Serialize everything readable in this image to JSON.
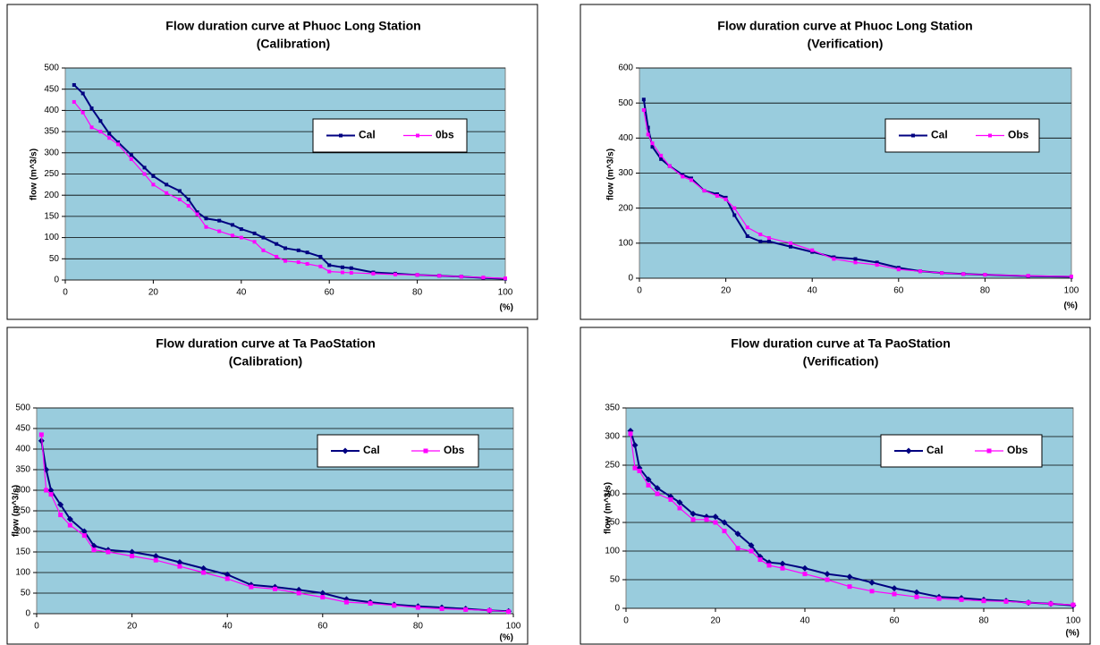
{
  "chart_data": [
    {
      "type": "line",
      "title": "Flow duration curve at Phuoc Long Station",
      "subtitle": "(Calibration)",
      "y_label": "flow (m^3/s)",
      "x_label": "(%)",
      "plot_color": "#99ccdd",
      "grid": true,
      "xlim": [
        0,
        100
      ],
      "xticks": [
        0,
        20,
        40,
        60,
        80,
        100
      ],
      "ylim": [
        0,
        500
      ],
      "yticks": [
        0,
        50,
        100,
        150,
        200,
        250,
        300,
        350,
        400,
        450,
        500
      ],
      "x": [
        2,
        4,
        6,
        8,
        10,
        12,
        15,
        18,
        20,
        23,
        26,
        28,
        30,
        32,
        35,
        38,
        40,
        43,
        45,
        48,
        50,
        53,
        55,
        58,
        60,
        63,
        65,
        70,
        75,
        80,
        85,
        90,
        95,
        100
      ],
      "series": [
        {
          "name": "Cal",
          "color": "#000080",
          "values": [
            460,
            440,
            405,
            375,
            345,
            325,
            295,
            265,
            245,
            225,
            210,
            190,
            160,
            145,
            140,
            130,
            120,
            110,
            100,
            85,
            75,
            70,
            65,
            55,
            35,
            30,
            28,
            18,
            15,
            12,
            10,
            8,
            5,
            3
          ]
        },
        {
          "name": "0bs",
          "color": "#ff00ff",
          "values": [
            420,
            395,
            360,
            350,
            335,
            320,
            285,
            250,
            225,
            205,
            190,
            175,
            155,
            125,
            115,
            105,
            100,
            90,
            70,
            55,
            45,
            42,
            38,
            32,
            20,
            18,
            17,
            15,
            13,
            12,
            10,
            8,
            6,
            4
          ]
        }
      ]
    },
    {
      "type": "line",
      "title": "Flow duration curve at Phuoc Long Station",
      "subtitle": "(Verification)",
      "y_label": "flow (m^3/s)",
      "x_label": "(%)",
      "plot_color": "#99ccdd",
      "grid": true,
      "xlim": [
        0,
        100
      ],
      "xticks": [
        0,
        20,
        40,
        60,
        80,
        100
      ],
      "ylim": [
        0,
        600
      ],
      "yticks": [
        0,
        100,
        200,
        300,
        400,
        500,
        600
      ],
      "x": [
        1,
        2,
        3,
        5,
        7,
        10,
        12,
        15,
        18,
        20,
        22,
        25,
        28,
        30,
        35,
        40,
        45,
        50,
        55,
        60,
        65,
        70,
        75,
        80,
        90,
        100
      ],
      "series": [
        {
          "name": "Cal",
          "color": "#000080",
          "values": [
            510,
            430,
            375,
            340,
            320,
            295,
            285,
            250,
            240,
            230,
            180,
            120,
            105,
            105,
            90,
            75,
            60,
            55,
            45,
            30,
            20,
            15,
            12,
            10,
            6,
            4
          ]
        },
        {
          "name": "Obs",
          "color": "#ff00ff",
          "values": [
            480,
            410,
            385,
            350,
            320,
            290,
            280,
            250,
            235,
            225,
            200,
            145,
            125,
            115,
            100,
            80,
            55,
            45,
            38,
            25,
            20,
            15,
            12,
            10,
            7,
            5
          ]
        }
      ]
    },
    {
      "type": "line",
      "title": "Flow duration curve at Ta PaoStation",
      "subtitle": "(Calibration)",
      "y_label": "flow (m^3/s)",
      "x_label": "(%)",
      "plot_color": "#99ccdd",
      "grid": true,
      "xlim": [
        0,
        100
      ],
      "xticks": [
        0,
        20,
        40,
        60,
        80,
        100
      ],
      "ylim": [
        0,
        500
      ],
      "yticks": [
        0,
        50,
        100,
        150,
        200,
        250,
        300,
        350,
        400,
        450,
        500
      ],
      "x": [
        1,
        2,
        3,
        5,
        7,
        10,
        12,
        15,
        20,
        25,
        30,
        35,
        40,
        45,
        50,
        55,
        60,
        65,
        70,
        75,
        80,
        85,
        90,
        95,
        99
      ],
      "series": [
        {
          "name": "Cal",
          "color": "#000080",
          "values": [
            420,
            350,
            300,
            265,
            230,
            200,
            165,
            155,
            150,
            140,
            125,
            110,
            95,
            70,
            65,
            58,
            50,
            35,
            28,
            22,
            18,
            15,
            12,
            8,
            6
          ]
        },
        {
          "name": "Obs",
          "color": "#ff00ff",
          "values": [
            435,
            300,
            290,
            240,
            215,
            190,
            155,
            150,
            140,
            130,
            115,
            100,
            85,
            65,
            60,
            50,
            40,
            28,
            25,
            20,
            15,
            12,
            10,
            8,
            5
          ]
        }
      ]
    },
    {
      "type": "line",
      "title": "Flow duration curve at Ta PaoStation",
      "subtitle": "(Verification)",
      "y_label": "flow (m^3/s)",
      "x_label": "(%)",
      "plot_color": "#99ccdd",
      "grid": true,
      "xlim": [
        0,
        100
      ],
      "xticks": [
        0,
        20,
        40,
        60,
        80,
        100
      ],
      "ylim": [
        0,
        350
      ],
      "yticks": [
        0,
        50,
        100,
        150,
        200,
        250,
        300,
        350
      ],
      "x": [
        1,
        2,
        3,
        5,
        7,
        10,
        12,
        15,
        18,
        20,
        22,
        25,
        28,
        30,
        32,
        35,
        40,
        45,
        50,
        55,
        60,
        65,
        70,
        75,
        80,
        85,
        90,
        95,
        100
      ],
      "series": [
        {
          "name": "Cal",
          "color": "#000080",
          "values": [
            310,
            285,
            245,
            225,
            210,
            195,
            185,
            165,
            160,
            160,
            150,
            130,
            110,
            90,
            80,
            78,
            70,
            60,
            55,
            45,
            35,
            28,
            20,
            18,
            15,
            13,
            10,
            8,
            5
          ]
        },
        {
          "name": "Obs",
          "color": "#ff00ff",
          "values": [
            305,
            245,
            240,
            215,
            200,
            190,
            175,
            155,
            155,
            150,
            135,
            105,
            100,
            85,
            75,
            70,
            60,
            50,
            38,
            30,
            25,
            20,
            17,
            15,
            13,
            12,
            10,
            8,
            6
          ]
        }
      ]
    }
  ]
}
